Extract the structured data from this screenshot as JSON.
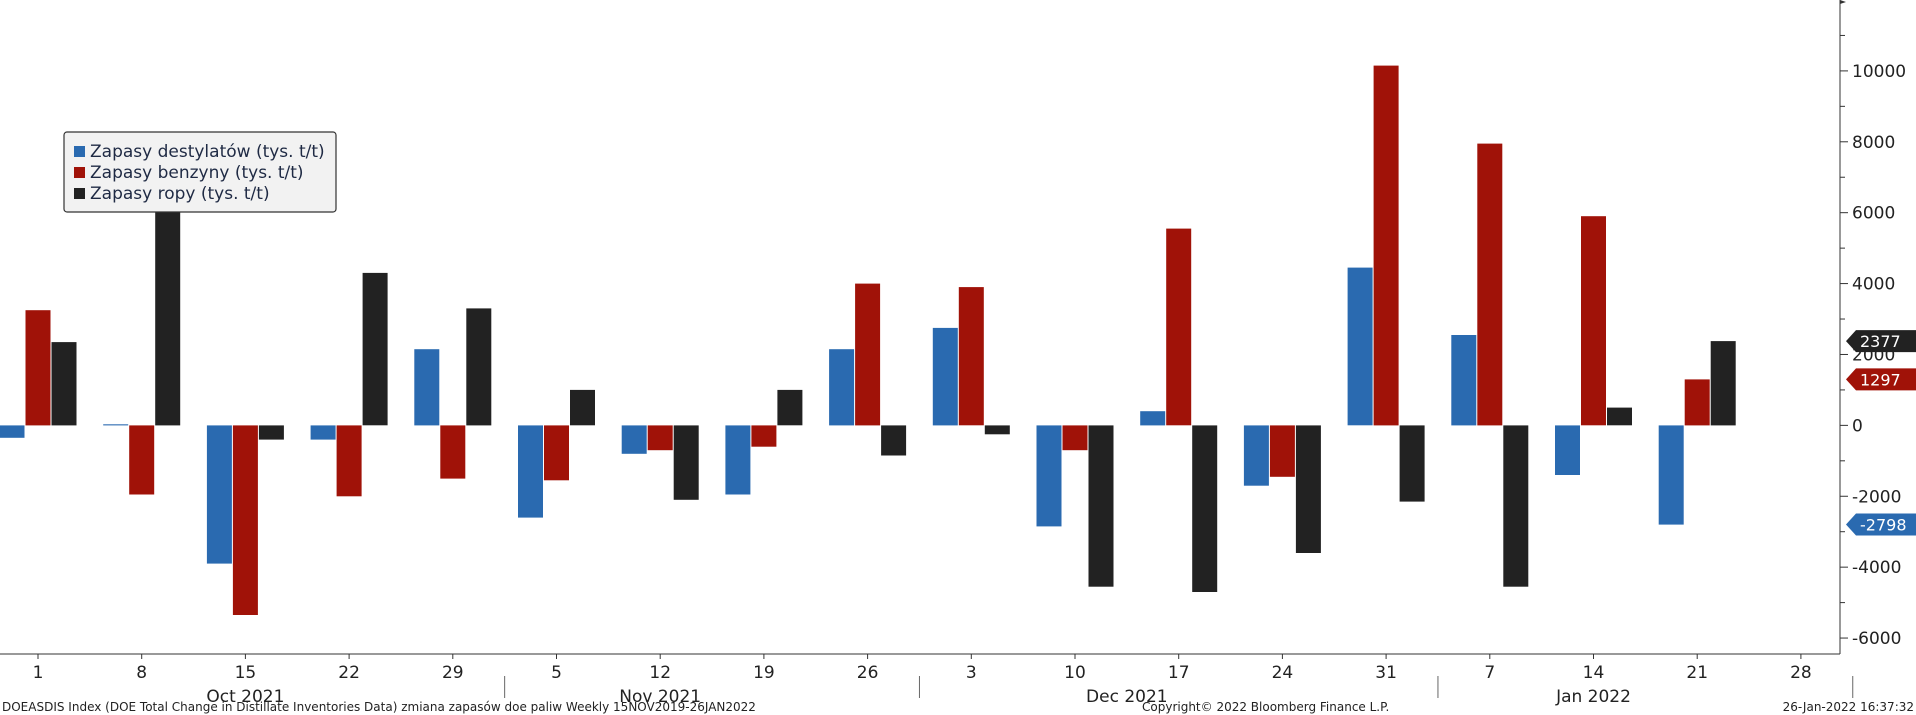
{
  "chart_data": {
    "type": "bar",
    "categories": [
      "1",
      "8",
      "15",
      "22",
      "29",
      "5",
      "12",
      "19",
      "26",
      "3",
      "10",
      "17",
      "24",
      "31",
      "7",
      "14",
      "21",
      "28"
    ],
    "month_labels": [
      {
        "label": "Oct 2021",
        "center_index": 2
      },
      {
        "label": "Nov 2021",
        "center_index": 6
      },
      {
        "label": "Dec 2021",
        "center_index": 10.5
      },
      {
        "label": "Jan 2022",
        "center_index": 15
      }
    ],
    "month_separators_after_index": [
      4,
      8,
      13
    ],
    "series": [
      {
        "name": "Zapasy destylatów (tys. t/t)",
        "color": "#2a6ab0",
        "values": [
          -350,
          30,
          -3900,
          -400,
          2150,
          -2600,
          -800,
          -1950,
          2150,
          2750,
          -2850,
          400,
          -1700,
          4450,
          2550,
          -1400,
          -2798,
          null
        ]
      },
      {
        "name": "Zapasy benzyny  (tys. t/t)",
        "color": "#a01208",
        "values": [
          3250,
          -1950,
          -5350,
          -2000,
          -1500,
          -1550,
          -700,
          -600,
          4000,
          3900,
          -700,
          5550,
          -1450,
          10150,
          7950,
          5900,
          1297,
          null
        ]
      },
      {
        "name": "Zapasy ropy (tys. t/t)",
        "color": "#222222",
        "values": [
          2350,
          6150,
          -400,
          4300,
          3300,
          1000,
          -2100,
          1000,
          -850,
          -250,
          -4550,
          -4700,
          -3600,
          -2150,
          -4550,
          500,
          2377,
          null
        ]
      }
    ],
    "y_ticks": [
      10000,
      8000,
      6000,
      4000,
      2000,
      0,
      -2000,
      -4000,
      -6000
    ],
    "ylim": [
      -6450,
      12000
    ],
    "last_value_badges": [
      {
        "value": "2377",
        "series_index": 2,
        "color": "#222222"
      },
      {
        "value": "1297",
        "series_index": 1,
        "color": "#a01208"
      },
      {
        "value": "-2798",
        "series_index": 0,
        "color": "#2a6ab0"
      }
    ],
    "legend_placement": "top-left",
    "grid": false
  },
  "footer": {
    "left": "DOEASDIS Index (DOE Total Change in Distillate Inventories Data) zmiana zapasów doe paliw  Weekly 15NOV2019-26JAN2022",
    "center": "Copyright© 2022 Bloomberg Finance L.P.",
    "right": "26-Jan-2022 16:37:32"
  }
}
